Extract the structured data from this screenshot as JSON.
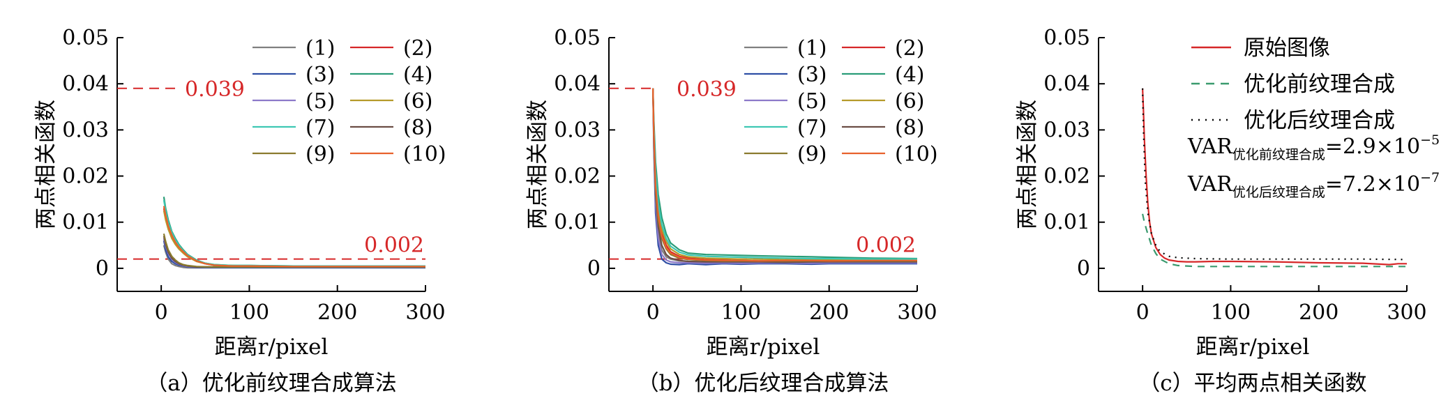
{
  "colors": {
    "axis": "#000000",
    "annotation": "#d62728",
    "series": [
      "#7f7f7f",
      "#d62728",
      "#2f4fa5",
      "#2a9d78",
      "#8c79c9",
      "#b59a2a",
      "#3ec7b3",
      "#6b4e45",
      "#8a7b2e",
      "#e8612c"
    ]
  },
  "chart_data": [
    {
      "type": "line",
      "caption": "（a）优化前纹理合成算法",
      "xlabel": "距离r/pixel",
      "ylabel": "两点相关函数",
      "xlim": [
        -50,
        300
      ],
      "ylim": [
        -0.005,
        0.05
      ],
      "xticks": [
        0,
        100,
        200,
        300
      ],
      "yticks": [
        0,
        0.01,
        0.02,
        0.03,
        0.04,
        0.05
      ],
      "ytick_labels": [
        "0",
        "0.01",
        "0.02",
        "0.03",
        "0.04",
        "0.05"
      ],
      "legend": [
        "(1)",
        "(2)",
        "(3)",
        "(4)",
        "(5)",
        "(6)",
        "(7)",
        "(8)",
        "(9)",
        "(10)"
      ],
      "legend_position": "top-right",
      "annotations": [
        {
          "text": "0.039",
          "y": 0.039,
          "x_range": [
            -50,
            20
          ]
        },
        {
          "text": "0.002",
          "y": 0.002,
          "x_range": [
            -50,
            300
          ]
        }
      ],
      "x": [
        3,
        5,
        8,
        12,
        16,
        20,
        25,
        30,
        40,
        50,
        60,
        80,
        100,
        150,
        200,
        250,
        300
      ],
      "series": [
        {
          "name": "(1)",
          "values": [
            0.005,
            0.0035,
            0.002,
            0.001,
            0.0006,
            0.0004,
            0.0002,
            0.0001,
            0.0001,
            0.0001,
            0.0001,
            0.0001,
            0.0001,
            0.0001,
            0.0001,
            0.0001,
            0.0001
          ]
        },
        {
          "name": "(2)",
          "values": [
            0.013,
            0.011,
            0.009,
            0.007,
            0.0055,
            0.0045,
            0.0035,
            0.0027,
            0.0016,
            0.001,
            0.0007,
            0.0005,
            0.0005,
            0.0004,
            0.0004,
            0.0004,
            0.0004
          ]
        },
        {
          "name": "(3)",
          "values": [
            0.006,
            0.004,
            0.0025,
            0.0015,
            0.001,
            0.0007,
            0.0005,
            0.0003,
            0.0002,
            0.0002,
            0.0002,
            0.0002,
            0.0002,
            0.0002,
            0.0002,
            0.0002,
            0.0002
          ]
        },
        {
          "name": "(4)",
          "values": [
            0.0155,
            0.013,
            0.0105,
            0.008,
            0.0065,
            0.0052,
            0.004,
            0.003,
            0.0018,
            0.0011,
            0.0008,
            0.0006,
            0.0006,
            0.0005,
            0.0005,
            0.0005,
            0.0005
          ]
        },
        {
          "name": "(5)",
          "values": [
            0.0065,
            0.0048,
            0.0032,
            0.002,
            0.0013,
            0.0009,
            0.0006,
            0.0004,
            0.0003,
            0.0003,
            0.0003,
            0.0003,
            0.0003,
            0.0003,
            0.0003,
            0.0003,
            0.0003
          ]
        },
        {
          "name": "(6)",
          "values": [
            0.0125,
            0.0105,
            0.0085,
            0.0065,
            0.0052,
            0.0042,
            0.0033,
            0.0025,
            0.0015,
            0.001,
            0.0007,
            0.0006,
            0.0005,
            0.0005,
            0.0005,
            0.0005,
            0.0005
          ]
        },
        {
          "name": "(7)",
          "values": [
            0.0148,
            0.0125,
            0.01,
            0.0078,
            0.0062,
            0.005,
            0.0038,
            0.0029,
            0.0017,
            0.0011,
            0.0008,
            0.0006,
            0.0006,
            0.0005,
            0.0005,
            0.0005,
            0.0005
          ]
        },
        {
          "name": "(8)",
          "values": [
            0.007,
            0.0052,
            0.0035,
            0.0022,
            0.0015,
            0.001,
            0.0007,
            0.0005,
            0.0003,
            0.0003,
            0.0003,
            0.0003,
            0.0003,
            0.0003,
            0.0003,
            0.0003,
            0.0003
          ]
        },
        {
          "name": "(9)",
          "values": [
            0.0075,
            0.0058,
            0.004,
            0.0026,
            0.0018,
            0.0012,
            0.0008,
            0.0006,
            0.0004,
            0.0003,
            0.0003,
            0.0003,
            0.0003,
            0.0003,
            0.0003,
            0.0003,
            0.0003
          ]
        },
        {
          "name": "(10)",
          "values": [
            0.0135,
            0.0115,
            0.0092,
            0.0072,
            0.0057,
            0.0046,
            0.0036,
            0.0027,
            0.0016,
            0.001,
            0.0007,
            0.0005,
            0.0005,
            0.0004,
            0.0004,
            0.0004,
            0.0004
          ]
        }
      ]
    },
    {
      "type": "line",
      "caption": "（b）优化后纹理合成算法",
      "xlabel": "距离r/pixel",
      "ylabel": "两点相关函数",
      "xlim": [
        -50,
        300
      ],
      "ylim": [
        -0.005,
        0.05
      ],
      "xticks": [
        0,
        100,
        200,
        300
      ],
      "yticks": [
        0,
        0.01,
        0.02,
        0.03,
        0.04,
        0.05
      ],
      "ytick_labels": [
        "0",
        "0.01",
        "0.02",
        "0.03",
        "0.04",
        "0.05"
      ],
      "legend": [
        "(1)",
        "(2)",
        "(3)",
        "(4)",
        "(5)",
        "(6)",
        "(7)",
        "(8)",
        "(9)",
        "(10)"
      ],
      "legend_position": "top-right",
      "annotations": [
        {
          "text": "0.039",
          "y": 0.039,
          "x_range": [
            -50,
            0
          ]
        },
        {
          "text": "0.002",
          "y": 0.002,
          "x_range": [
            -50,
            300
          ]
        }
      ],
      "x": [
        0,
        1,
        3,
        6,
        10,
        15,
        20,
        30,
        40,
        60,
        80,
        100,
        120,
        150,
        180,
        200,
        250,
        300
      ],
      "series": [
        {
          "name": "(1)",
          "values": [
            0.039,
            0.028,
            0.015,
            0.008,
            0.004,
            0.0025,
            0.002,
            0.0016,
            0.0015,
            0.0014,
            0.0013,
            0.0013,
            0.0013,
            0.0012,
            0.0012,
            0.0012,
            0.0012,
            0.0012
          ]
        },
        {
          "name": "(2)",
          "values": [
            0.039,
            0.03,
            0.019,
            0.012,
            0.0075,
            0.005,
            0.0036,
            0.0026,
            0.0022,
            0.0019,
            0.0018,
            0.0017,
            0.0016,
            0.0016,
            0.0016,
            0.0017,
            0.0018,
            0.0019
          ]
        },
        {
          "name": "(3)",
          "values": [
            0.039,
            0.026,
            0.012,
            0.005,
            0.002,
            0.0012,
            0.0009,
            0.0008,
            0.001,
            0.0008,
            0.001,
            0.0009,
            0.001,
            0.001,
            0.0009,
            0.001,
            0.001,
            0.001
          ]
        },
        {
          "name": "(4)",
          "values": [
            0.039,
            0.032,
            0.023,
            0.016,
            0.011,
            0.0075,
            0.0055,
            0.004,
            0.0033,
            0.003,
            0.0029,
            0.0028,
            0.0027,
            0.0026,
            0.0025,
            0.0024,
            0.0022,
            0.0021
          ]
        },
        {
          "name": "(5)",
          "values": [
            0.039,
            0.027,
            0.014,
            0.0065,
            0.003,
            0.0018,
            0.0014,
            0.0012,
            0.0012,
            0.0011,
            0.0012,
            0.0011,
            0.0012,
            0.0012,
            0.0011,
            0.0012,
            0.0012,
            0.0012
          ]
        },
        {
          "name": "(6)",
          "values": [
            0.039,
            0.03,
            0.02,
            0.013,
            0.0085,
            0.0058,
            0.0042,
            0.003,
            0.0025,
            0.0022,
            0.0021,
            0.002,
            0.002,
            0.0019,
            0.0019,
            0.0019,
            0.0019,
            0.0019
          ]
        },
        {
          "name": "(7)",
          "values": [
            0.039,
            0.031,
            0.021,
            0.014,
            0.0095,
            0.0065,
            0.0048,
            0.0035,
            0.0029,
            0.0026,
            0.0025,
            0.0024,
            0.0023,
            0.0022,
            0.0021,
            0.0021,
            0.002,
            0.002
          ]
        },
        {
          "name": "(8)",
          "values": [
            0.039,
            0.028,
            0.016,
            0.009,
            0.005,
            0.003,
            0.0022,
            0.0017,
            0.0015,
            0.0014,
            0.0014,
            0.0014,
            0.0014,
            0.0013,
            0.0014,
            0.0014,
            0.0014,
            0.0014
          ]
        },
        {
          "name": "(9)",
          "values": [
            0.039,
            0.029,
            0.017,
            0.0105,
            0.0065,
            0.0042,
            0.003,
            0.0022,
            0.0019,
            0.0017,
            0.0016,
            0.0016,
            0.0016,
            0.0016,
            0.0016,
            0.0016,
            0.0016,
            0.0016
          ]
        },
        {
          "name": "(10)",
          "values": [
            0.039,
            0.029,
            0.018,
            0.0115,
            0.007,
            0.0045,
            0.0033,
            0.0024,
            0.002,
            0.0018,
            0.0017,
            0.0017,
            0.0016,
            0.0017,
            0.0017,
            0.0016,
            0.0017,
            0.0017
          ]
        }
      ]
    },
    {
      "type": "line",
      "caption": "（c）平均两点相关函数",
      "xlabel": "距离r/pixel",
      "ylabel": "两点相关函数",
      "xlim": [
        -50,
        300
      ],
      "ylim": [
        -0.005,
        0.05
      ],
      "xticks": [
        0,
        100,
        200,
        300
      ],
      "yticks": [
        0,
        0.01,
        0.02,
        0.03,
        0.04,
        0.05
      ],
      "ytick_labels": [
        "0",
        "0.01",
        "0.02",
        "0.03",
        "0.04",
        "0.05"
      ],
      "legend_position": "top-right",
      "var_texts": [
        {
          "main": "VAR",
          "sub": "优化前纹理合成",
          "value": "=2.9×10",
          "exp": "−5"
        },
        {
          "main": "VAR",
          "sub": "优化后纹理合成",
          "value": "=7.2×10",
          "exp": "−7"
        }
      ],
      "series": [
        {
          "name": "原始图像",
          "color": "#d62728",
          "dash": "solid",
          "x": [
            0,
            1,
            2,
            4,
            6,
            8,
            10,
            15,
            20,
            25,
            30,
            40,
            50,
            60,
            80,
            100,
            150,
            200,
            250,
            280,
            290,
            300
          ],
          "values": [
            0.039,
            0.034,
            0.028,
            0.02,
            0.014,
            0.01,
            0.0075,
            0.0045,
            0.003,
            0.0022,
            0.0018,
            0.0015,
            0.0014,
            0.0014,
            0.0015,
            0.0015,
            0.0014,
            0.0012,
            0.0011,
            0.0008,
            0.001,
            0.001
          ]
        },
        {
          "name": "优化前纹理合成",
          "color": "#3a9a6e",
          "dash": "dashed",
          "x": [
            0,
            2,
            5,
            10,
            15,
            20,
            30,
            40,
            60,
            100,
            150,
            200,
            250,
            300
          ],
          "values": [
            0.0118,
            0.01,
            0.008,
            0.005,
            0.0032,
            0.002,
            0.001,
            0.0006,
            0.0004,
            0.0004,
            0.0004,
            0.0004,
            0.0004,
            0.0004
          ]
        },
        {
          "name": "优化后纹理合成",
          "color": "#000000",
          "dash": "dotted",
          "x": [
            0,
            1,
            3,
            6,
            10,
            15,
            20,
            30,
            40,
            60,
            100,
            150,
            200,
            250,
            300
          ],
          "values": [
            0.039,
            0.03,
            0.019,
            0.012,
            0.0075,
            0.005,
            0.0036,
            0.0026,
            0.0023,
            0.0021,
            0.002,
            0.002,
            0.002,
            0.002,
            0.0019
          ]
        }
      ]
    }
  ]
}
